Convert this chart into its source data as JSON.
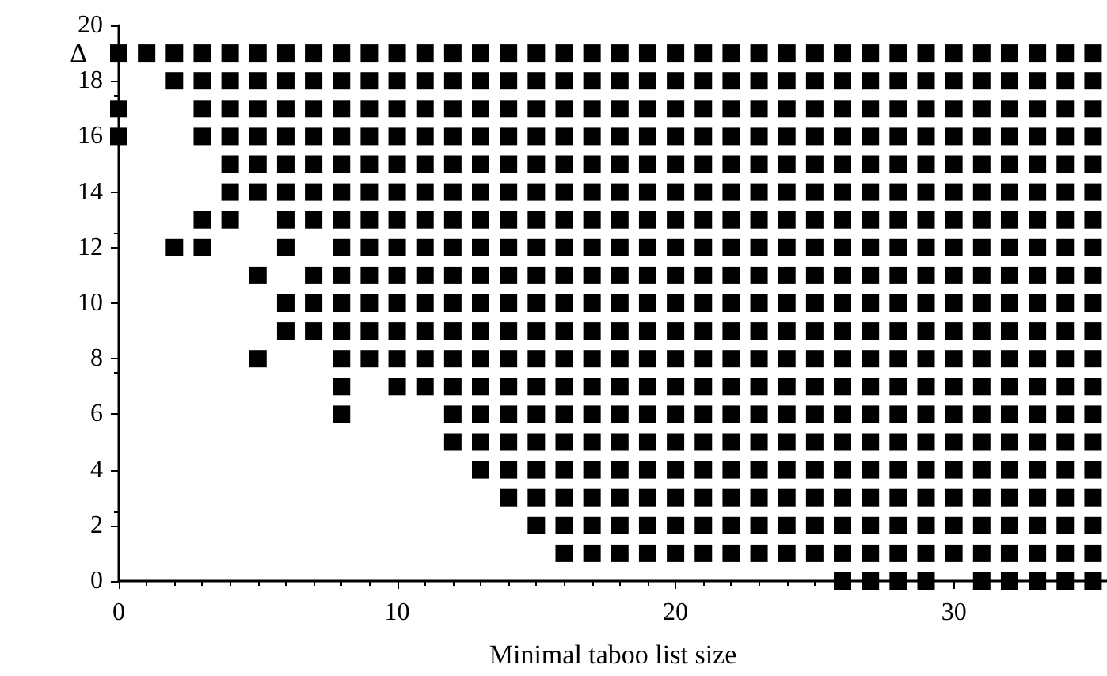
{
  "chart_data": {
    "type": "scatter",
    "xlabel": "Minimal taboo list size",
    "ylabel": "Δ",
    "xlim": [
      0,
      35.5
    ],
    "xticks": [
      0,
      10,
      20,
      30
    ],
    "ylim": [
      0,
      20
    ],
    "yticks": [
      0,
      2,
      4,
      6,
      8,
      10,
      12,
      14,
      16,
      18,
      20
    ],
    "marker": "square",
    "series": [
      {
        "color": "#000000",
        "x": [
          0,
          1,
          2,
          3,
          4,
          5,
          6,
          7,
          8,
          9,
          10,
          11,
          12,
          13,
          14,
          15,
          16,
          17,
          18,
          19,
          20,
          21,
          22,
          23,
          24,
          25,
          26,
          27,
          28,
          29,
          30,
          31,
          32,
          33,
          34,
          35
        ],
        "values": [
          19,
          19,
          19,
          19,
          19,
          19,
          19,
          19,
          19,
          19,
          19,
          19,
          19,
          19,
          19,
          19,
          19,
          19,
          19,
          19,
          19,
          19,
          19,
          19,
          19,
          19,
          19,
          19,
          19,
          19,
          19,
          19,
          19,
          19,
          19,
          19
        ]
      },
      {
        "color": "#000000",
        "x": [
          2,
          3,
          4,
          5,
          6,
          7,
          8,
          9,
          10,
          11,
          12,
          13,
          14,
          15,
          16,
          17,
          18,
          19,
          20,
          21,
          22,
          23,
          24,
          25,
          26,
          27,
          28,
          29,
          30,
          31,
          32,
          33,
          34,
          35
        ],
        "values": [
          18,
          18,
          18,
          18,
          18,
          18,
          18,
          18,
          18,
          18,
          18,
          18,
          18,
          18,
          18,
          18,
          18,
          18,
          18,
          18,
          18,
          18,
          18,
          18,
          18,
          18,
          18,
          18,
          18,
          18,
          18,
          18,
          18,
          18
        ]
      },
      {
        "color": "#000000",
        "x": [
          0,
          3,
          4,
          5,
          6,
          7,
          8,
          9,
          10,
          11,
          12,
          13,
          14,
          15,
          16,
          17,
          18,
          19,
          20,
          21,
          22,
          23,
          24,
          25,
          26,
          27,
          28,
          29,
          30,
          31,
          32,
          33,
          34,
          35
        ],
        "values": [
          17,
          17,
          17,
          17,
          17,
          17,
          17,
          17,
          17,
          17,
          17,
          17,
          17,
          17,
          17,
          17,
          17,
          17,
          17,
          17,
          17,
          17,
          17,
          17,
          17,
          17,
          17,
          17,
          17,
          17,
          17,
          17,
          17,
          17
        ]
      },
      {
        "color": "#000000",
        "x": [
          0,
          3,
          4,
          5,
          6,
          7,
          8,
          9,
          10,
          11,
          12,
          13,
          14,
          15,
          16,
          17,
          18,
          19,
          20,
          21,
          22,
          23,
          24,
          25,
          26,
          27,
          28,
          29,
          30,
          31,
          32,
          33,
          34,
          35
        ],
        "values": [
          16,
          16,
          16,
          16,
          16,
          16,
          16,
          16,
          16,
          16,
          16,
          16,
          16,
          16,
          16,
          16,
          16,
          16,
          16,
          16,
          16,
          16,
          16,
          16,
          16,
          16,
          16,
          16,
          16,
          16,
          16,
          16,
          16,
          16
        ]
      },
      {
        "color": "#000000",
        "x": [
          4,
          5,
          6,
          7,
          8,
          9,
          10,
          11,
          12,
          13,
          14,
          15,
          16,
          17,
          18,
          19,
          20,
          21,
          22,
          23,
          24,
          25,
          26,
          27,
          28,
          29,
          30,
          31,
          32,
          33,
          34,
          35
        ],
        "values": [
          15,
          15,
          15,
          15,
          15,
          15,
          15,
          15,
          15,
          15,
          15,
          15,
          15,
          15,
          15,
          15,
          15,
          15,
          15,
          15,
          15,
          15,
          15,
          15,
          15,
          15,
          15,
          15,
          15,
          15,
          15,
          15
        ]
      },
      {
        "color": "#000000",
        "x": [
          4,
          5,
          6,
          7,
          8,
          9,
          10,
          11,
          12,
          13,
          14,
          15,
          16,
          17,
          18,
          19,
          20,
          21,
          22,
          23,
          24,
          25,
          26,
          27,
          28,
          29,
          30,
          31,
          32,
          33,
          34,
          35
        ],
        "values": [
          14,
          14,
          14,
          14,
          14,
          14,
          14,
          14,
          14,
          14,
          14,
          14,
          14,
          14,
          14,
          14,
          14,
          14,
          14,
          14,
          14,
          14,
          14,
          14,
          14,
          14,
          14,
          14,
          14,
          14,
          14,
          14
        ]
      },
      {
        "color": "#000000",
        "x": [
          3,
          4,
          6,
          7,
          8,
          9,
          10,
          11,
          12,
          13,
          14,
          15,
          16,
          17,
          18,
          19,
          20,
          21,
          22,
          23,
          24,
          25,
          26,
          27,
          28,
          29,
          30,
          31,
          32,
          33,
          34,
          35
        ],
        "values": [
          13,
          13,
          13,
          13,
          13,
          13,
          13,
          13,
          13,
          13,
          13,
          13,
          13,
          13,
          13,
          13,
          13,
          13,
          13,
          13,
          13,
          13,
          13,
          13,
          13,
          13,
          13,
          13,
          13,
          13,
          13,
          13
        ]
      },
      {
        "color": "#000000",
        "x": [
          2,
          3,
          6,
          8,
          9,
          10,
          11,
          12,
          13,
          14,
          15,
          16,
          17,
          18,
          19,
          20,
          21,
          22,
          23,
          24,
          25,
          26,
          27,
          28,
          29,
          30,
          31,
          32,
          33,
          34,
          35
        ],
        "values": [
          12,
          12,
          12,
          12,
          12,
          12,
          12,
          12,
          12,
          12,
          12,
          12,
          12,
          12,
          12,
          12,
          12,
          12,
          12,
          12,
          12,
          12,
          12,
          12,
          12,
          12,
          12,
          12,
          12,
          12,
          12
        ]
      },
      {
        "color": "#000000",
        "x": [
          5,
          7,
          8,
          9,
          10,
          11,
          12,
          13,
          14,
          15,
          16,
          17,
          18,
          19,
          20,
          21,
          22,
          23,
          24,
          25,
          26,
          27,
          28,
          29,
          30,
          31,
          32,
          33,
          34,
          35
        ],
        "values": [
          11,
          11,
          11,
          11,
          11,
          11,
          11,
          11,
          11,
          11,
          11,
          11,
          11,
          11,
          11,
          11,
          11,
          11,
          11,
          11,
          11,
          11,
          11,
          11,
          11,
          11,
          11,
          11,
          11,
          11
        ]
      },
      {
        "color": "#000000",
        "x": [
          6,
          7,
          8,
          9,
          10,
          11,
          12,
          13,
          14,
          15,
          16,
          17,
          18,
          19,
          20,
          21,
          22,
          23,
          24,
          25,
          26,
          27,
          28,
          29,
          30,
          31,
          32,
          33,
          34,
          35
        ],
        "values": [
          10,
          10,
          10,
          10,
          10,
          10,
          10,
          10,
          10,
          10,
          10,
          10,
          10,
          10,
          10,
          10,
          10,
          10,
          10,
          10,
          10,
          10,
          10,
          10,
          10,
          10,
          10,
          10,
          10,
          10
        ]
      },
      {
        "color": "#000000",
        "x": [
          6,
          7,
          8,
          9,
          10,
          11,
          12,
          13,
          14,
          15,
          16,
          17,
          18,
          19,
          20,
          21,
          22,
          23,
          24,
          25,
          26,
          27,
          28,
          29,
          30,
          31,
          32,
          33,
          34,
          35
        ],
        "values": [
          9,
          9,
          9,
          9,
          9,
          9,
          9,
          9,
          9,
          9,
          9,
          9,
          9,
          9,
          9,
          9,
          9,
          9,
          9,
          9,
          9,
          9,
          9,
          9,
          9,
          9,
          9,
          9,
          9,
          9
        ]
      },
      {
        "color": "#000000",
        "x": [
          5,
          8,
          9,
          10,
          11,
          12,
          13,
          14,
          15,
          16,
          17,
          18,
          19,
          20,
          21,
          22,
          23,
          24,
          25,
          26,
          27,
          28,
          29,
          30,
          31,
          32,
          33,
          34,
          35
        ],
        "values": [
          8,
          8,
          8,
          8,
          8,
          8,
          8,
          8,
          8,
          8,
          8,
          8,
          8,
          8,
          8,
          8,
          8,
          8,
          8,
          8,
          8,
          8,
          8,
          8,
          8,
          8,
          8,
          8,
          8
        ]
      },
      {
        "color": "#000000",
        "x": [
          8,
          10,
          11,
          12,
          13,
          14,
          15,
          16,
          17,
          18,
          19,
          20,
          21,
          22,
          23,
          24,
          25,
          26,
          27,
          28,
          29,
          30,
          31,
          32,
          33,
          34,
          35
        ],
        "values": [
          7,
          7,
          7,
          7,
          7,
          7,
          7,
          7,
          7,
          7,
          7,
          7,
          7,
          7,
          7,
          7,
          7,
          7,
          7,
          7,
          7,
          7,
          7,
          7,
          7,
          7,
          7
        ]
      },
      {
        "color": "#000000",
        "x": [
          8,
          12,
          13,
          14,
          15,
          16,
          17,
          18,
          19,
          20,
          21,
          22,
          23,
          24,
          25,
          26,
          27,
          28,
          29,
          30,
          31,
          32,
          33,
          34,
          35
        ],
        "values": [
          6,
          6,
          6,
          6,
          6,
          6,
          6,
          6,
          6,
          6,
          6,
          6,
          6,
          6,
          6,
          6,
          6,
          6,
          6,
          6,
          6,
          6,
          6,
          6,
          6
        ]
      },
      {
        "color": "#000000",
        "x": [
          12,
          13,
          14,
          15,
          16,
          17,
          18,
          19,
          20,
          21,
          22,
          23,
          24,
          25,
          26,
          27,
          28,
          29,
          30,
          31,
          32,
          33,
          34,
          35
        ],
        "values": [
          5,
          5,
          5,
          5,
          5,
          5,
          5,
          5,
          5,
          5,
          5,
          5,
          5,
          5,
          5,
          5,
          5,
          5,
          5,
          5,
          5,
          5,
          5,
          5
        ]
      },
      {
        "color": "#000000",
        "x": [
          13,
          14,
          15,
          16,
          17,
          18,
          19,
          20,
          21,
          22,
          23,
          24,
          25,
          26,
          27,
          28,
          29,
          30,
          31,
          32,
          33,
          34,
          35
        ],
        "values": [
          4,
          4,
          4,
          4,
          4,
          4,
          4,
          4,
          4,
          4,
          4,
          4,
          4,
          4,
          4,
          4,
          4,
          4,
          4,
          4,
          4,
          4,
          4
        ]
      },
      {
        "color": "#000000",
        "x": [
          14,
          15,
          16,
          17,
          18,
          19,
          20,
          21,
          22,
          23,
          24,
          25,
          26,
          27,
          28,
          29,
          30,
          31,
          32,
          33,
          34,
          35
        ],
        "values": [
          3,
          3,
          3,
          3,
          3,
          3,
          3,
          3,
          3,
          3,
          3,
          3,
          3,
          3,
          3,
          3,
          3,
          3,
          3,
          3,
          3,
          3
        ]
      },
      {
        "color": "#000000",
        "x": [
          15,
          16,
          17,
          18,
          19,
          20,
          21,
          22,
          23,
          24,
          25,
          26,
          27,
          28,
          29,
          30,
          31,
          32,
          33,
          34,
          35
        ],
        "values": [
          2,
          2,
          2,
          2,
          2,
          2,
          2,
          2,
          2,
          2,
          2,
          2,
          2,
          2,
          2,
          2,
          2,
          2,
          2,
          2,
          2
        ]
      },
      {
        "color": "#000000",
        "x": [
          16,
          17,
          18,
          19,
          20,
          21,
          22,
          23,
          24,
          25,
          26,
          27,
          28,
          29,
          30,
          31,
          32,
          33,
          34,
          35
        ],
        "values": [
          1,
          1,
          1,
          1,
          1,
          1,
          1,
          1,
          1,
          1,
          1,
          1,
          1,
          1,
          1,
          1,
          1,
          1,
          1,
          1
        ]
      },
      {
        "color": "#000000",
        "x": [
          26,
          27,
          28,
          29,
          31,
          32,
          33,
          34,
          35
        ],
        "values": [
          0,
          0,
          0,
          0,
          0,
          0,
          0,
          0,
          0
        ]
      }
    ]
  }
}
